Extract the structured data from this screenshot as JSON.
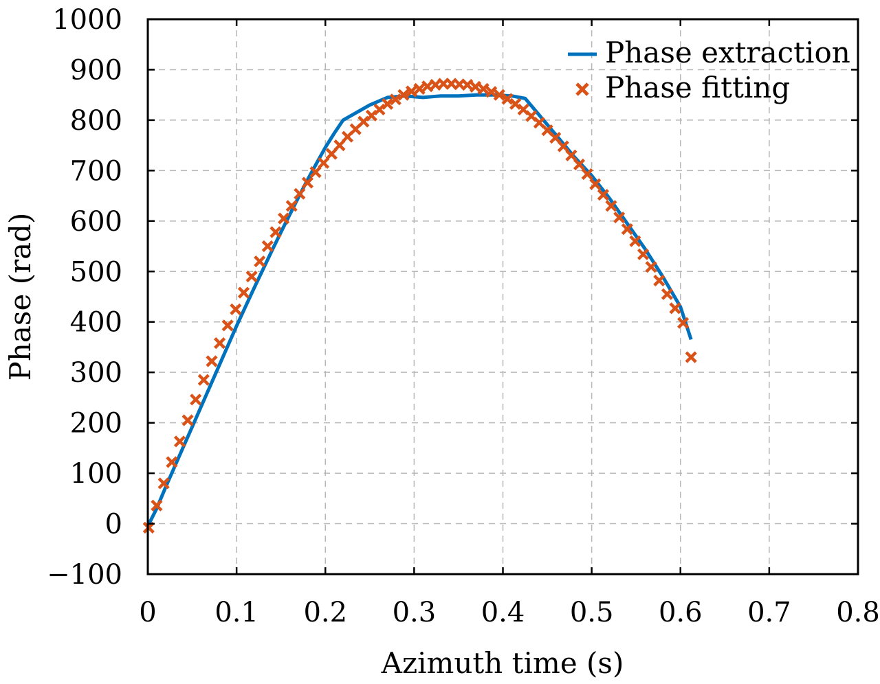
{
  "chart_data": {
    "type": "line",
    "title": "",
    "xlabel": "Azimuth time (s)",
    "ylabel": "Phase (rad)",
    "xlim": [
      0,
      0.8
    ],
    "ylim": [
      -100,
      1000
    ],
    "xticks": [
      0,
      0.1,
      0.2,
      0.3,
      0.4,
      0.5,
      0.6,
      0.7,
      0.8
    ],
    "xtick_labels": [
      "0",
      "0.1",
      "0.2",
      "0.3",
      "0.4",
      "0.5",
      "0.6",
      "0.7",
      "0.8"
    ],
    "yticks": [
      -100,
      0,
      100,
      200,
      300,
      400,
      500,
      600,
      700,
      800,
      900,
      1000
    ],
    "ytick_labels": [
      "−100",
      "0",
      "100",
      "200",
      "300",
      "400",
      "500",
      "600",
      "700",
      "800",
      "900",
      "1000"
    ],
    "grid": true,
    "legend_position": "top-right",
    "series": [
      {
        "name": "Phase extraction",
        "style": "line",
        "color": "#0072BD",
        "x": [
          0,
          0.01,
          0.02,
          0.03,
          0.04,
          0.05,
          0.06,
          0.07,
          0.08,
          0.09,
          0.1,
          0.11,
          0.12,
          0.13,
          0.14,
          0.15,
          0.16,
          0.17,
          0.18,
          0.19,
          0.2,
          0.21,
          0.22,
          0.235,
          0.25,
          0.27,
          0.29,
          0.31,
          0.33,
          0.35,
          0.37,
          0.39,
          0.41,
          0.425,
          0.44,
          0.46,
          0.48,
          0.5,
          0.52,
          0.54,
          0.56,
          0.58,
          0.6,
          0.612
        ],
        "y": [
          -5,
          30,
          72,
          112,
          152,
          192,
          232,
          272,
          312,
          352,
          392,
          430,
          468,
          505,
          542,
          578,
          613,
          648,
          682,
          714,
          746,
          774,
          800,
          815,
          830,
          845,
          848,
          845,
          848,
          848,
          850,
          850,
          848,
          843,
          812,
          770,
          728,
          690,
          645,
          595,
          545,
          490,
          430,
          365
        ]
      },
      {
        "name": "Phase fitting",
        "style": "marker",
        "marker": "x",
        "color": "#D95319",
        "x": [
          0.001,
          0.01,
          0.018,
          0.027,
          0.036,
          0.045,
          0.054,
          0.063,
          0.072,
          0.081,
          0.09,
          0.099,
          0.108,
          0.117,
          0.126,
          0.135,
          0.144,
          0.153,
          0.162,
          0.171,
          0.18,
          0.189,
          0.198,
          0.207,
          0.216,
          0.225,
          0.234,
          0.243,
          0.252,
          0.261,
          0.27,
          0.279,
          0.288,
          0.297,
          0.306,
          0.315,
          0.324,
          0.333,
          0.342,
          0.351,
          0.36,
          0.369,
          0.378,
          0.387,
          0.396,
          0.405,
          0.414,
          0.423,
          0.432,
          0.441,
          0.45,
          0.459,
          0.468,
          0.477,
          0.486,
          0.495,
          0.504,
          0.513,
          0.522,
          0.531,
          0.54,
          0.549,
          0.558,
          0.567,
          0.576,
          0.585,
          0.594,
          0.603,
          0.612
        ],
        "y": [
          -8,
          36,
          80,
          122,
          163,
          205,
          246,
          285,
          322,
          358,
          393,
          425,
          458,
          490,
          520,
          550,
          578,
          605,
          630,
          654,
          676,
          697,
          715,
          733,
          750,
          767,
          782,
          797,
          809,
          821,
          832,
          841,
          850,
          857,
          862,
          867,
          870,
          872,
          872,
          871,
          870,
          866,
          862,
          856,
          850,
          842,
          832,
          821,
          808,
          795,
          780,
          765,
          748,
          730,
          712,
          693,
          673,
          652,
          630,
          607,
          584,
          560,
          534,
          509,
          482,
          455,
          427,
          398,
          330
        ]
      }
    ]
  }
}
